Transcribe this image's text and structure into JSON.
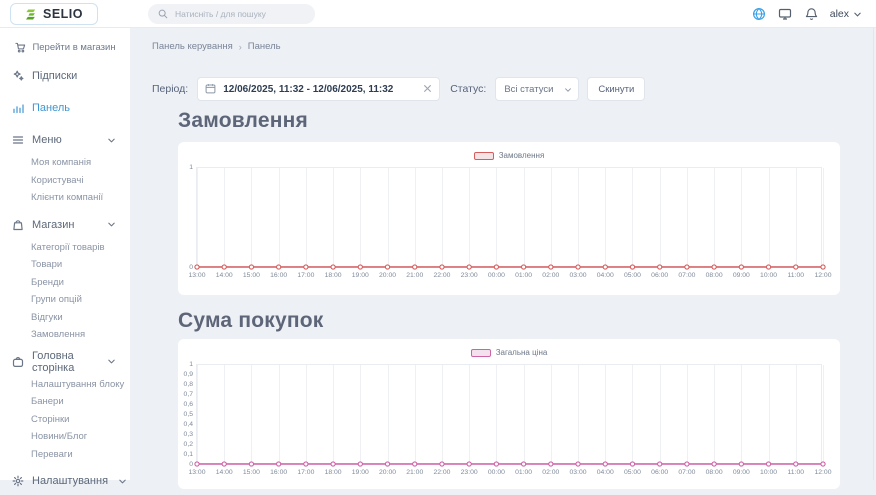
{
  "header": {
    "logo_text": "SELIO",
    "search_placeholder": "Натисніть / для пошуку",
    "user_name": "alex"
  },
  "sidebar": {
    "store_link_label": "Перейти в магазин",
    "groups": [
      {
        "label": "Підписки",
        "icon": "subscriptions-icon",
        "active": false,
        "expandable": false,
        "children": []
      },
      {
        "label": "Панель",
        "icon": "dashboard-icon",
        "active": true,
        "expandable": false,
        "children": []
      },
      {
        "label": "Меню",
        "icon": "menu-icon",
        "active": false,
        "expandable": true,
        "children": [
          "Моя компанія",
          "Користувачі",
          "Клієнти компанії"
        ]
      },
      {
        "label": "Магазин",
        "icon": "shop-bag-icon",
        "active": false,
        "expandable": true,
        "children": [
          "Категорії товарів",
          "Товари",
          "Бренди",
          "Групи опцій",
          "Відгуки",
          "Замовлення"
        ]
      },
      {
        "label": "Головна сторінка",
        "icon": "homepage-icon",
        "active": false,
        "expandable": true,
        "children": [
          "Налаштування блоку",
          "Банери",
          "Сторінки",
          "Новини/Блог",
          "Переваги"
        ]
      },
      {
        "label": "Налаштування",
        "icon": "gear-icon",
        "active": false,
        "expandable": true,
        "children": []
      }
    ]
  },
  "breadcrumb": {
    "items": [
      "Панель керування",
      "Панель"
    ],
    "separator": "›"
  },
  "filters": {
    "period_label": "Період:",
    "period_value": "12/06/2025, 11:32 - 12/06/2025, 11:32",
    "status_label": "Статус:",
    "status_value": "Всі статуси",
    "reset_label": "Скинути"
  },
  "sections": {
    "orders_title": "Замовлення",
    "purchases_title": "Сума покупок"
  },
  "colors": {
    "accent_blue": "#3f96d2",
    "orders_line": "#d65d5d",
    "orders_fill": "#f6e3e5",
    "price_line": "#ce62a8",
    "price_fill": "#f5e1ee"
  },
  "chart_data": [
    {
      "type": "line",
      "title": "Замовлення",
      "legend": "Замовлення",
      "legend_position": "top-center",
      "color": "#d65d5d",
      "fill": "#f6e3e5",
      "grid": "vertical",
      "x": [
        "13:00",
        "14:00",
        "15:00",
        "16:00",
        "17:00",
        "18:00",
        "19:00",
        "20:00",
        "21:00",
        "22:00",
        "23:00",
        "00:00",
        "01:00",
        "02:00",
        "03:00",
        "04:00",
        "05:00",
        "06:00",
        "07:00",
        "08:00",
        "09:00",
        "10:00",
        "11:00",
        "12:00"
      ],
      "series": [
        {
          "name": "Замовлення",
          "values": [
            0,
            0,
            0,
            0,
            0,
            0,
            0,
            0,
            0,
            0,
            0,
            0,
            0,
            0,
            0,
            0,
            0,
            0,
            0,
            0,
            0,
            0,
            0,
            0
          ]
        }
      ],
      "ylim": [
        0,
        1
      ],
      "yticks": [
        {
          "label": "1",
          "value": 1
        },
        {
          "label": "0",
          "value": 0
        }
      ]
    },
    {
      "type": "line",
      "title": "Сума покупок",
      "legend": "Загальна ціна",
      "legend_position": "top-center",
      "color": "#ce62a8",
      "fill": "#f5e1ee",
      "grid": "vertical",
      "x": [
        "13:00",
        "14:00",
        "15:00",
        "16:00",
        "17:00",
        "18:00",
        "19:00",
        "20:00",
        "21:00",
        "22:00",
        "23:00",
        "00:00",
        "01:00",
        "02:00",
        "03:00",
        "04:00",
        "05:00",
        "06:00",
        "07:00",
        "08:00",
        "09:00",
        "10:00",
        "11:00",
        "12:00"
      ],
      "series": [
        {
          "name": "Загальна ціна",
          "values": [
            0,
            0,
            0,
            0,
            0,
            0,
            0,
            0,
            0,
            0,
            0,
            0,
            0,
            0,
            0,
            0,
            0,
            0,
            0,
            0,
            0,
            0,
            0,
            0
          ]
        }
      ],
      "ylim": [
        0,
        1
      ],
      "yticks": [
        {
          "label": "1",
          "value": 1
        },
        {
          "label": "0,9",
          "value": 0.9
        },
        {
          "label": "0,8",
          "value": 0.8
        },
        {
          "label": "0,7",
          "value": 0.7
        },
        {
          "label": "0,6",
          "value": 0.6
        },
        {
          "label": "0,5",
          "value": 0.5
        },
        {
          "label": "0,4",
          "value": 0.4
        },
        {
          "label": "0,3",
          "value": 0.3
        },
        {
          "label": "0,2",
          "value": 0.2
        },
        {
          "label": "0,1",
          "value": 0.1
        },
        {
          "label": "0",
          "value": 0
        }
      ]
    }
  ]
}
